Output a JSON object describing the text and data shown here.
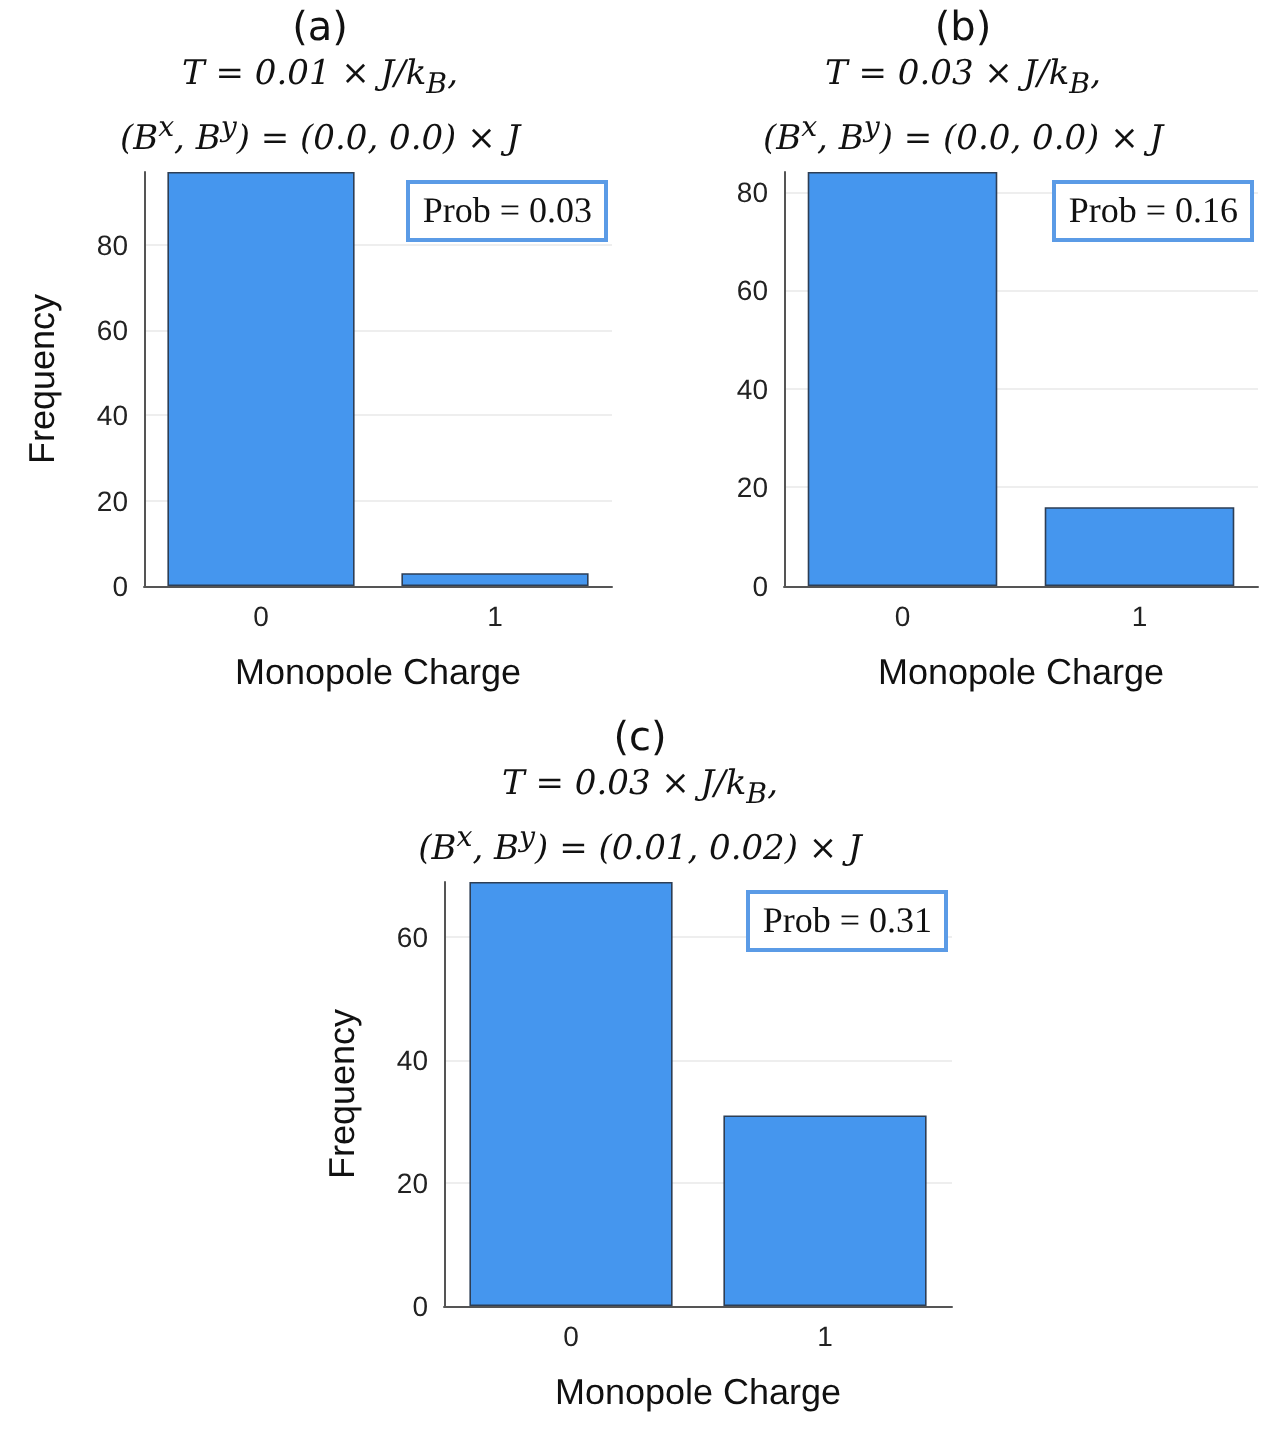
{
  "chart_data": [
    {
      "type": "bar",
      "title": "(a)",
      "subtitle": "T = 0.01 × J/k$_{B}$,\n(B$^{x}$, B$^{y}$) = (0.0, 0.0) × J",
      "xlabel": "Monopole Charge",
      "ylabel": "Frequency",
      "categories": [
        "0",
        "1"
      ],
      "values": [
        97,
        3
      ],
      "color": "#4596ee",
      "ylim": [
        0,
        97
      ],
      "yticks": [
        0,
        20,
        40,
        60,
        80
      ],
      "grid": "y",
      "annotations": [
        "Prob = 0.03"
      ]
    },
    {
      "type": "bar",
      "title": "(b)",
      "subtitle": "T = 0.03 × J/k$_{B}$,\n(B$^{x}$, B$^{y}$) = (0.0, 0.0) × J",
      "xlabel": "Monopole Charge",
      "categories": [
        "0",
        "1"
      ],
      "values": [
        84,
        16
      ],
      "color": "#4596ee",
      "ylim": [
        0,
        84
      ],
      "yticks": [
        0,
        20,
        40,
        60,
        80
      ],
      "grid": "y",
      "annotations": [
        "Prob = 0.16"
      ]
    },
    {
      "type": "bar",
      "title": "(c)",
      "subtitle": "T = 0.03 × J/k$_{B}$,\n(B$^{x}$, B$^{y}$) = (0.01, 0.02) × J",
      "xlabel": "Monopole Charge",
      "ylabel": "Frequency",
      "categories": [
        "0",
        "1"
      ],
      "values": [
        69,
        31
      ],
      "color": "#4596ee",
      "ylim": [
        0,
        69
      ],
      "yticks": [
        0,
        20,
        40,
        60
      ],
      "grid": "y",
      "annotations": [
        "Prob = 0.31"
      ]
    }
  ]
}
